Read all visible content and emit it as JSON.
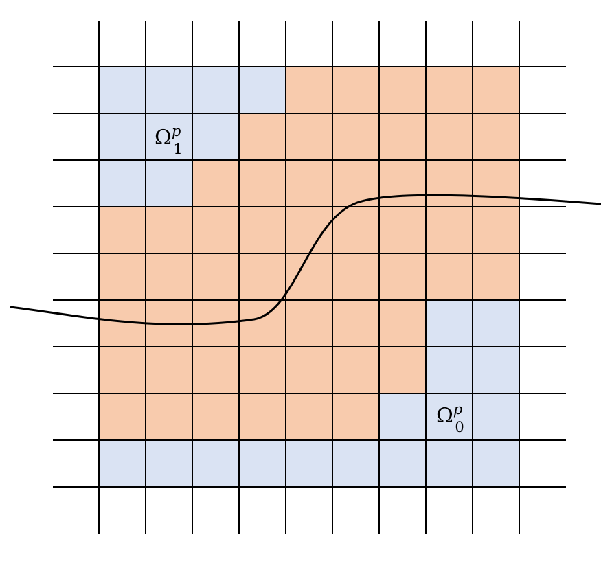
{
  "labels": [
    {
      "base": "Ω",
      "sup": "p",
      "sub": "1"
    },
    {
      "base": "Ω",
      "sup": "p",
      "sub": "0"
    }
  ]
}
